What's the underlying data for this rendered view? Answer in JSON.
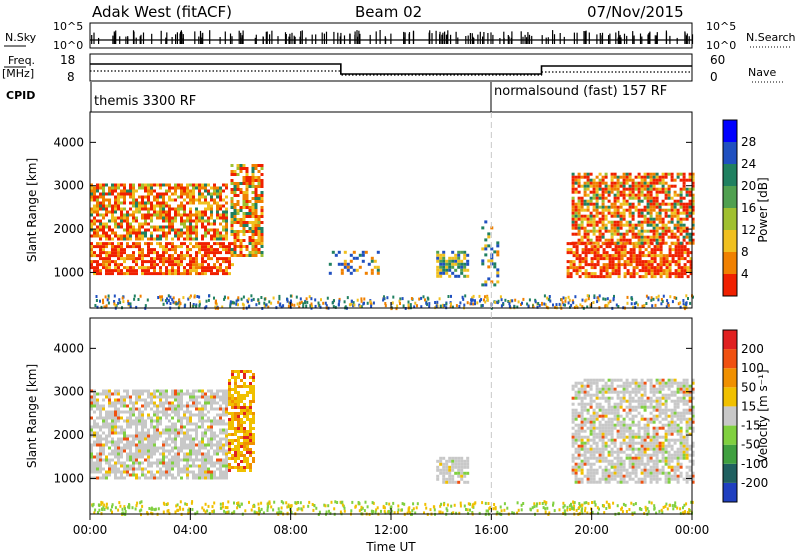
{
  "header": {
    "radar": "Adak West (fitACF)",
    "beam": "Beam 02",
    "date": "07/Nov/2015"
  },
  "top_panels": {
    "nsky_label": "N.Sky",
    "nsearch_label": "N.Search",
    "nsky_ticks": [
      "10^5",
      "10^0"
    ],
    "freq_label_1": "Freq.",
    "freq_label_2": "[MHz]",
    "freq_ticks": [
      "18",
      "8"
    ],
    "nave_label": "Nave",
    "nave_ticks": [
      "60",
      "0"
    ],
    "cpid_label": "CPID",
    "cpid_segments": [
      "themis 3300 RF",
      "normalsound (fast) 157 RF"
    ]
  },
  "power_panel": {
    "ylabel": "Slant Range [km]",
    "colorbar_label": "Power [dB]",
    "colorbar_ticks": [
      "28",
      "24",
      "20",
      "16",
      "12",
      "8",
      "4"
    ]
  },
  "velocity_panel": {
    "ylabel": "Slant Range [km]",
    "colorbar_label": "Velocity [m s⁻¹]",
    "colorbar_ticks": [
      "200",
      "100",
      "50",
      "15",
      "-15",
      "-50",
      "-100",
      "-200"
    ]
  },
  "xaxis": {
    "label": "Time UT",
    "ticks": [
      "00:00",
      "04:00",
      "08:00",
      "12:00",
      "16:00",
      "20:00",
      "00:00"
    ]
  },
  "chart_data": [
    {
      "type": "heatmap",
      "title": "Power",
      "xlabel": "Time UT",
      "ylabel": "Slant Range [km]",
      "xlim_hours": [
        0,
        24
      ],
      "ylim_km": [
        180,
        4700
      ],
      "yticks_km": [
        1000,
        2000,
        3000,
        4000
      ],
      "colorbar": {
        "label": "Power [dB]",
        "ticks": [
          4,
          8,
          12,
          16,
          20,
          24,
          28
        ],
        "colors": [
          "#0000ff",
          "#2050c0",
          "#208060",
          "#50a050",
          "#a0c030",
          "#f0c020",
          "#f08000",
          "#f02000"
        ]
      },
      "cpid_change_hour": 16.0,
      "regions": [
        {
          "t0": 0.0,
          "t1": 5.7,
          "r0": 1000,
          "r1": 1700,
          "level": "high"
        },
        {
          "t0": 0.0,
          "t1": 5.5,
          "r0": 1750,
          "r1": 3050,
          "level": "mixed"
        },
        {
          "t0": 5.6,
          "t1": 6.8,
          "r0": 1400,
          "r1": 3500,
          "level": "mixed"
        },
        {
          "t0": 9.4,
          "t1": 11.5,
          "r0": 950,
          "r1": 1500,
          "level": "scatter"
        },
        {
          "t0": 13.8,
          "t1": 15.0,
          "r0": 900,
          "r1": 1500,
          "level": "mid"
        },
        {
          "t0": 15.6,
          "t1": 16.3,
          "r0": 700,
          "r1": 2200,
          "level": "scatter"
        },
        {
          "t0": 19.0,
          "t1": 24.0,
          "r0": 900,
          "r1": 1700,
          "level": "high"
        },
        {
          "t0": 19.2,
          "t1": 24.0,
          "r0": 1700,
          "r1": 3300,
          "level": "mixed"
        }
      ]
    },
    {
      "type": "heatmap",
      "title": "Velocity",
      "xlabel": "Time UT",
      "ylabel": "Slant Range [km]",
      "xlim_hours": [
        0,
        24
      ],
      "ylim_km": [
        180,
        4700
      ],
      "yticks_km": [
        1000,
        2000,
        3000,
        4000
      ],
      "colorbar": {
        "label": "Velocity [m s-1]",
        "ticks": [
          -200,
          -100,
          -50,
          -15,
          15,
          50,
          100,
          200
        ],
        "colors": [
          "#e02020",
          "#f05010",
          "#f09000",
          "#f0c000",
          "#c8c8c8",
          "#80d040",
          "#40a040",
          "#206060",
          "#2040c0"
        ]
      },
      "regions": [
        {
          "t0": 0.0,
          "t1": 5.5,
          "r0": 1000,
          "r1": 3050,
          "level": "grey"
        },
        {
          "t0": 5.5,
          "t1": 6.5,
          "r0": 1200,
          "r1": 3500,
          "level": "orange"
        },
        {
          "t0": 13.8,
          "t1": 15.0,
          "r0": 900,
          "r1": 1500,
          "level": "grey"
        },
        {
          "t0": 19.2,
          "t1": 24.0,
          "r0": 900,
          "r1": 3300,
          "level": "grey"
        }
      ]
    }
  ]
}
